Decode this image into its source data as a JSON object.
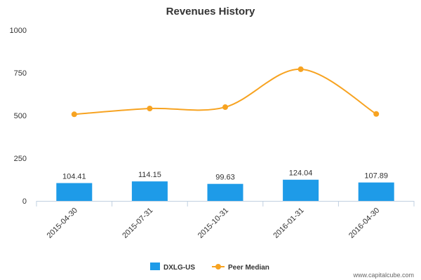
{
  "chart_data": {
    "type": "bar",
    "title": "Revenues History",
    "categories": [
      "2015-04-30",
      "2015-07-31",
      "2015-10-31",
      "2016-01-31",
      "2016-04-30"
    ],
    "series": [
      {
        "name": "DXLG-US",
        "type": "bar",
        "color": "#1e9be8",
        "values": [
          104.41,
          114.15,
          99.63,
          124.04,
          107.89
        ]
      },
      {
        "name": "Peer Median",
        "type": "line",
        "color": "#f7a321",
        "values": [
          507,
          541,
          549,
          771,
          509
        ]
      }
    ],
    "data_labels": [
      "104.41",
      "114.15",
      "99.63",
      "124.04",
      "107.89"
    ],
    "y_ticks": [
      "0",
      "250",
      "500",
      "750",
      "1000"
    ],
    "ylim": [
      0,
      1000
    ],
    "xlabel": "",
    "ylabel": "",
    "grid": false,
    "legend_position": "bottom-center"
  },
  "credit": "www.capitalcube.com"
}
